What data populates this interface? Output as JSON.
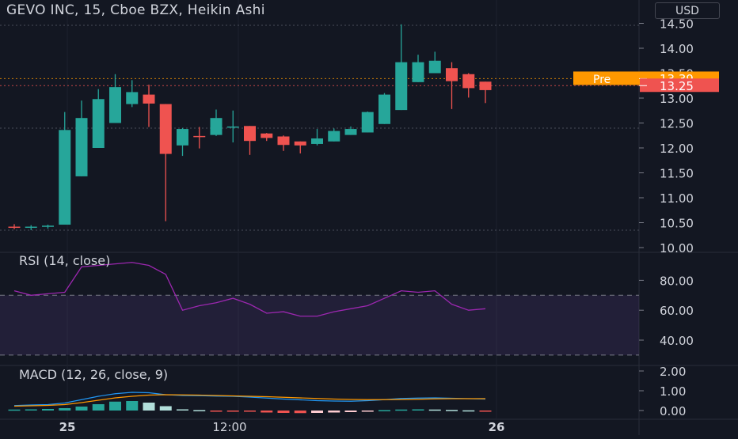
{
  "header": {
    "symbol_title": "GEVO INC, 15, Cboe BZX, Heikin Ashi",
    "currency_button": "USD"
  },
  "price_axis": {
    "ticks": [
      "14.50",
      "14.00",
      "13.50",
      "13.00",
      "12.50",
      "12.00",
      "11.50",
      "11.00",
      "10.50",
      "10.00"
    ],
    "pre_label": "Pre",
    "pre_value": "13.39",
    "last_value": "13.25"
  },
  "rsi": {
    "label": "RSI (14, close)",
    "ticks": [
      "80.00",
      "60.00",
      "40.00"
    ]
  },
  "macd": {
    "label": "MACD (12, 26, close, 9)",
    "ticks": [
      "2.00",
      "1.00",
      "0.00"
    ]
  },
  "time_axis": {
    "labels": [
      "25",
      "12:00",
      "26"
    ]
  },
  "colors": {
    "up": "#26a69a",
    "down": "#ef5350",
    "pre_accent": "#ff9800",
    "rsi_line": "#9c27b0",
    "macd_line": "#2196f3",
    "signal_line": "#ff9800",
    "grid": "#2a2e39",
    "text": "#d1d4dc"
  },
  "chart_data": {
    "type": "candlestick",
    "series_name": "GEVO INC",
    "interval": "15",
    "ylim": [
      10.0,
      14.6
    ],
    "candles": [
      {
        "o": 10.42,
        "h": 10.47,
        "l": 10.37,
        "c": 10.4
      },
      {
        "o": 10.4,
        "h": 10.45,
        "l": 10.35,
        "c": 10.42
      },
      {
        "o": 10.42,
        "h": 10.46,
        "l": 10.38,
        "c": 10.44
      },
      {
        "o": 10.46,
        "h": 12.72,
        "l": 10.46,
        "c": 12.36
      },
      {
        "o": 11.43,
        "h": 12.95,
        "l": 11.43,
        "c": 12.6
      },
      {
        "o": 12.0,
        "h": 13.18,
        "l": 12.0,
        "c": 12.98
      },
      {
        "o": 12.5,
        "h": 13.48,
        "l": 12.5,
        "c": 13.22
      },
      {
        "o": 12.88,
        "h": 13.36,
        "l": 12.82,
        "c": 13.12
      },
      {
        "o": 13.07,
        "h": 13.27,
        "l": 12.42,
        "c": 12.89
      },
      {
        "o": 12.88,
        "h": 12.88,
        "l": 10.53,
        "c": 11.88
      },
      {
        "o": 12.05,
        "h": 12.4,
        "l": 11.84,
        "c": 12.38
      },
      {
        "o": 12.24,
        "h": 12.42,
        "l": 11.99,
        "c": 12.22
      },
      {
        "o": 12.26,
        "h": 12.77,
        "l": 12.24,
        "c": 12.6
      },
      {
        "o": 12.42,
        "h": 12.75,
        "l": 12.11,
        "c": 12.43
      },
      {
        "o": 12.44,
        "h": 12.44,
        "l": 11.86,
        "c": 12.14
      },
      {
        "o": 12.29,
        "h": 12.3,
        "l": 12.14,
        "c": 12.2
      },
      {
        "o": 12.23,
        "h": 12.25,
        "l": 11.94,
        "c": 12.06
      },
      {
        "o": 12.13,
        "h": 12.13,
        "l": 11.89,
        "c": 12.05
      },
      {
        "o": 12.08,
        "h": 12.38,
        "l": 12.05,
        "c": 12.19
      },
      {
        "o": 12.13,
        "h": 12.39,
        "l": 12.13,
        "c": 12.34
      },
      {
        "o": 12.26,
        "h": 12.43,
        "l": 12.26,
        "c": 12.38
      },
      {
        "o": 12.31,
        "h": 12.73,
        "l": 12.31,
        "c": 12.72
      },
      {
        "o": 12.48,
        "h": 13.1,
        "l": 12.48,
        "c": 13.07
      },
      {
        "o": 12.76,
        "h": 14.48,
        "l": 12.76,
        "c": 13.72
      },
      {
        "o": 13.32,
        "h": 13.87,
        "l": 13.32,
        "c": 13.72
      },
      {
        "o": 13.5,
        "h": 13.93,
        "l": 13.5,
        "c": 13.75
      },
      {
        "o": 13.6,
        "h": 13.72,
        "l": 12.78,
        "c": 13.34
      },
      {
        "o": 13.48,
        "h": 13.5,
        "l": 13.01,
        "c": 13.2
      },
      {
        "o": 13.33,
        "h": 13.33,
        "l": 12.9,
        "c": 13.16
      }
    ],
    "rsi_values": [
      73,
      70,
      71,
      72,
      89,
      90,
      91,
      92,
      90,
      84,
      60,
      63,
      65,
      68,
      64,
      58,
      59,
      56,
      56,
      59,
      61,
      63,
      68,
      73,
      72,
      73,
      64,
      60,
      61
    ],
    "rsi_band": [
      30,
      70
    ],
    "rsi_ylim": [
      20,
      100
    ],
    "macd_values": [
      0.25,
      0.28,
      0.3,
      0.38,
      0.55,
      0.72,
      0.85,
      0.92,
      0.9,
      0.8,
      0.76,
      0.75,
      0.73,
      0.72,
      0.68,
      0.63,
      0.58,
      0.54,
      0.5,
      0.48,
      0.47,
      0.5,
      0.55,
      0.61,
      0.63,
      0.64,
      0.62,
      0.6,
      0.58
    ],
    "signal_values": [
      0.22,
      0.24,
      0.26,
      0.3,
      0.4,
      0.52,
      0.64,
      0.72,
      0.78,
      0.8,
      0.79,
      0.78,
      0.76,
      0.74,
      0.72,
      0.7,
      0.67,
      0.64,
      0.61,
      0.58,
      0.56,
      0.55,
      0.55,
      0.56,
      0.57,
      0.59,
      0.6,
      0.6,
      0.6
    ],
    "histogram_values": [
      0.05,
      0.06,
      0.08,
      0.12,
      0.2,
      0.32,
      0.45,
      0.48,
      0.4,
      0.22,
      0.06,
      0.02,
      -0.02,
      -0.03,
      -0.06,
      -0.1,
      -0.12,
      -0.13,
      -0.12,
      -0.1,
      -0.08,
      -0.05,
      0.02,
      0.05,
      0.06,
      0.05,
      0.03,
      0.01,
      -0.01
    ],
    "macd_ylim": [
      -0.3,
      2.1
    ]
  }
}
